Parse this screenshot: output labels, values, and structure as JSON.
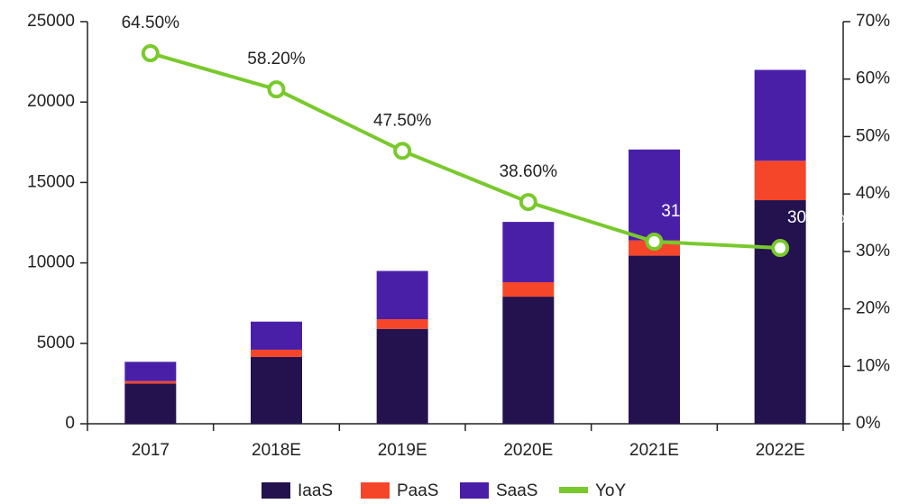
{
  "chart_data": {
    "type": "bar",
    "categories": [
      "2017",
      "2018E",
      "2019E",
      "2020E",
      "2021E",
      "2022E"
    ],
    "series": [
      {
        "name": "IaaS",
        "color": "#24124f",
        "values": [
          2500,
          4150,
          5900,
          7900,
          10450,
          13900
        ]
      },
      {
        "name": "PaaS",
        "color": "#f5462a",
        "values": [
          150,
          450,
          600,
          900,
          950,
          2450
        ]
      },
      {
        "name": "SaaS",
        "color": "#4a1fa8",
        "values": [
          1200,
          1750,
          3000,
          3750,
          5650,
          5650
        ]
      },
      {
        "name": "YoY",
        "color": "#79c92c",
        "axis": "y2",
        "values": [
          64.5,
          58.2,
          47.5,
          38.6,
          31.7,
          30.6
        ],
        "value_labels": [
          "64.50%",
          "58.20%",
          "47.50%",
          "38.60%",
          "31.70%",
          "30.60%"
        ]
      }
    ],
    "stacked": true,
    "ylim": [
      0,
      25000
    ],
    "yticks": [
      0,
      5000,
      10000,
      15000,
      20000,
      25000
    ],
    "y2lim": [
      0,
      70
    ],
    "y2ticks": [
      {
        "value": 0,
        "label": "0%"
      },
      {
        "value": 10,
        "label": "10%"
      },
      {
        "value": 20,
        "label": "20%"
      },
      {
        "value": 30,
        "label": "30%"
      },
      {
        "value": 40,
        "label": "40%"
      },
      {
        "value": 50,
        "label": "50%"
      },
      {
        "value": 60,
        "label": "60%"
      },
      {
        "value": 70,
        "label": "70%"
      }
    ],
    "legend": "bottom"
  }
}
